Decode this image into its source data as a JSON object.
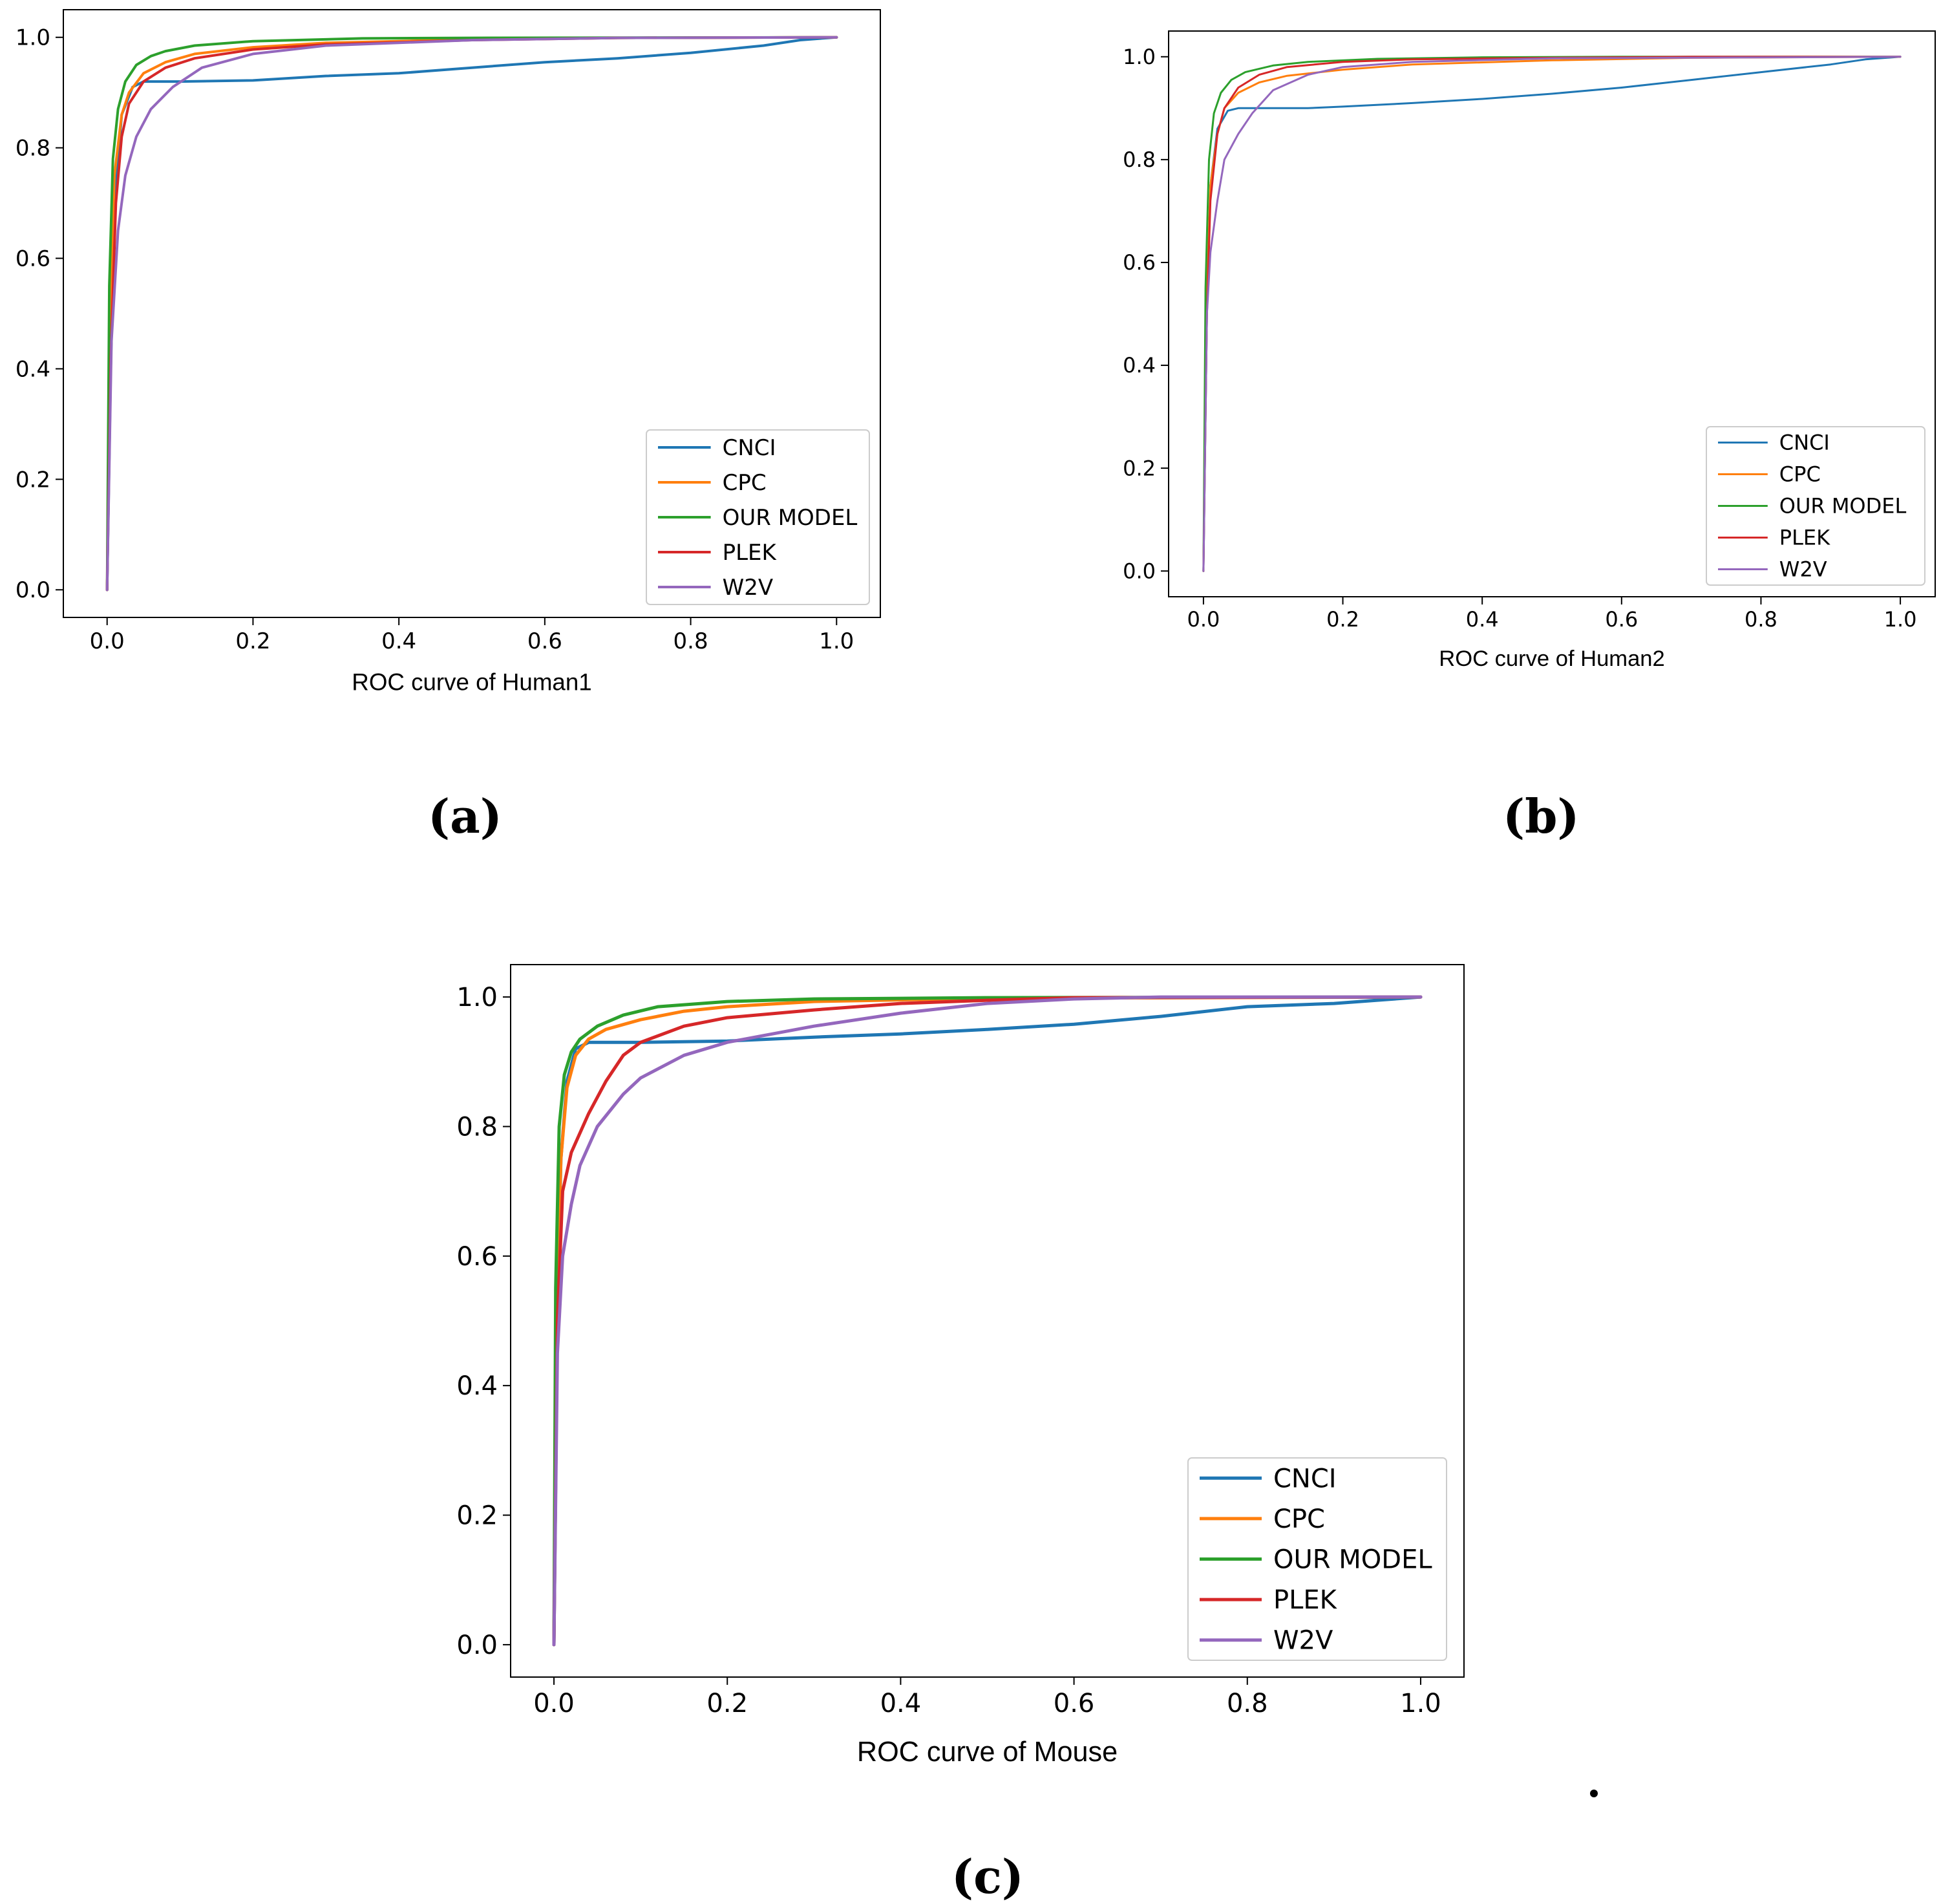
{
  "panel_labels": {
    "a": "(a)",
    "b": "(b)",
    "c": "(c)"
  },
  "colors": {
    "CNCI": "#1f77b4",
    "CPC": "#ff7f0e",
    "OUR MODEL": "#2ca02c",
    "PLEK": "#d62728",
    "W2V": "#9467bd"
  },
  "chart_data": [
    {
      "type": "line",
      "id": "human1",
      "title": "",
      "xlabel": "ROC curve of Human1",
      "ylabel": "",
      "xlim": [
        -0.06,
        1.06
      ],
      "ylim": [
        -0.05,
        1.05
      ],
      "xticks": [
        "0.0",
        "0.2",
        "0.4",
        "0.6",
        "0.8",
        "1.0"
      ],
      "yticks": [
        "0.0",
        "0.2",
        "0.4",
        "0.6",
        "0.8",
        "1.0"
      ],
      "grid": false,
      "legend_position": "lower-right",
      "series": [
        {
          "name": "CNCI",
          "x": [
            0,
            0.005,
            0.01,
            0.02,
            0.035,
            0.05,
            0.1,
            0.2,
            0.3,
            0.4,
            0.5,
            0.6,
            0.7,
            0.8,
            0.9,
            0.95,
            1.0
          ],
          "y": [
            0,
            0.4,
            0.7,
            0.86,
            0.91,
            0.92,
            0.92,
            0.922,
            0.93,
            0.935,
            0.945,
            0.955,
            0.962,
            0.972,
            0.985,
            0.995,
            1.0
          ]
        },
        {
          "name": "CPC",
          "x": [
            0,
            0.004,
            0.01,
            0.02,
            0.03,
            0.05,
            0.08,
            0.12,
            0.2,
            0.3,
            0.5,
            0.7,
            1.0
          ],
          "y": [
            0,
            0.5,
            0.75,
            0.86,
            0.9,
            0.935,
            0.955,
            0.97,
            0.982,
            0.99,
            0.996,
            0.999,
            1.0
          ]
        },
        {
          "name": "OUR MODEL",
          "x": [
            0,
            0.003,
            0.008,
            0.015,
            0.025,
            0.04,
            0.06,
            0.08,
            0.12,
            0.2,
            0.35,
            0.5,
            1.0
          ],
          "y": [
            0,
            0.55,
            0.78,
            0.87,
            0.92,
            0.95,
            0.966,
            0.975,
            0.985,
            0.993,
            0.998,
            0.999,
            1.0
          ]
        },
        {
          "name": "PLEK",
          "x": [
            0,
            0.005,
            0.012,
            0.02,
            0.03,
            0.05,
            0.08,
            0.12,
            0.2,
            0.3,
            0.5,
            0.7,
            1.0
          ],
          "y": [
            0,
            0.42,
            0.7,
            0.82,
            0.88,
            0.92,
            0.945,
            0.962,
            0.978,
            0.987,
            0.995,
            0.999,
            1.0
          ]
        },
        {
          "name": "W2V",
          "x": [
            0,
            0.006,
            0.015,
            0.025,
            0.04,
            0.06,
            0.09,
            0.13,
            0.2,
            0.3,
            0.5,
            0.7,
            1.0
          ],
          "y": [
            0,
            0.45,
            0.65,
            0.75,
            0.82,
            0.87,
            0.91,
            0.945,
            0.97,
            0.985,
            0.995,
            0.999,
            1.0
          ]
        }
      ]
    },
    {
      "type": "line",
      "id": "human2",
      "title": "",
      "xlabel": "ROC curve of Human2",
      "ylabel": "",
      "xlim": [
        -0.05,
        1.05
      ],
      "ylim": [
        -0.05,
        1.05
      ],
      "xticks": [
        "0.0",
        "0.2",
        "0.4",
        "0.6",
        "0.8",
        "1.0"
      ],
      "yticks": [
        "0.0",
        "0.2",
        "0.4",
        "0.6",
        "0.8",
        "1.0"
      ],
      "grid": false,
      "legend_position": "lower-right",
      "series": [
        {
          "name": "CNCI",
          "x": [
            0,
            0.005,
            0.01,
            0.02,
            0.035,
            0.05,
            0.1,
            0.15,
            0.2,
            0.3,
            0.4,
            0.5,
            0.6,
            0.7,
            0.8,
            0.9,
            0.95,
            1.0
          ],
          "y": [
            0,
            0.5,
            0.75,
            0.86,
            0.895,
            0.9,
            0.9,
            0.9,
            0.903,
            0.91,
            0.918,
            0.928,
            0.94,
            0.955,
            0.97,
            0.985,
            0.995,
            1.0
          ]
        },
        {
          "name": "CPC",
          "x": [
            0,
            0.004,
            0.01,
            0.02,
            0.03,
            0.05,
            0.08,
            0.12,
            0.2,
            0.3,
            0.5,
            0.7,
            1.0
          ],
          "y": [
            0,
            0.5,
            0.75,
            0.85,
            0.9,
            0.93,
            0.95,
            0.963,
            0.975,
            0.985,
            0.993,
            0.998,
            1.0
          ]
        },
        {
          "name": "OUR MODEL",
          "x": [
            0,
            0.003,
            0.008,
            0.015,
            0.025,
            0.04,
            0.06,
            0.1,
            0.15,
            0.25,
            0.4,
            0.6,
            1.0
          ],
          "y": [
            0,
            0.55,
            0.8,
            0.89,
            0.93,
            0.955,
            0.97,
            0.983,
            0.99,
            0.996,
            0.999,
            1.0,
            1.0
          ]
        },
        {
          "name": "PLEK",
          "x": [
            0,
            0.005,
            0.01,
            0.02,
            0.03,
            0.05,
            0.08,
            0.12,
            0.2,
            0.3,
            0.5,
            0.7,
            1.0
          ],
          "y": [
            0,
            0.5,
            0.72,
            0.85,
            0.9,
            0.94,
            0.965,
            0.98,
            0.99,
            0.995,
            0.998,
            1.0,
            1.0
          ]
        },
        {
          "name": "W2V",
          "x": [
            0,
            0.005,
            0.01,
            0.02,
            0.03,
            0.05,
            0.07,
            0.1,
            0.15,
            0.2,
            0.3,
            0.5,
            1.0
          ],
          "y": [
            0,
            0.5,
            0.62,
            0.72,
            0.8,
            0.85,
            0.89,
            0.935,
            0.965,
            0.98,
            0.99,
            0.997,
            1.0
          ]
        }
      ]
    },
    {
      "type": "line",
      "id": "mouse",
      "title": "",
      "xlabel": "ROC curve of Mouse",
      "ylabel": "",
      "xlim": [
        -0.05,
        1.05
      ],
      "ylim": [
        -0.05,
        1.05
      ],
      "xticks": [
        "0.0",
        "0.2",
        "0.4",
        "0.6",
        "0.8",
        "1.0"
      ],
      "yticks": [
        "0.0",
        "0.2",
        "0.4",
        "0.6",
        "0.8",
        "1.0"
      ],
      "grid": false,
      "legend_position": "lower-right",
      "series": [
        {
          "name": "CNCI",
          "x": [
            0,
            0.004,
            0.008,
            0.015,
            0.025,
            0.04,
            0.1,
            0.2,
            0.3,
            0.4,
            0.5,
            0.6,
            0.7,
            0.8,
            0.9,
            0.95,
            1.0
          ],
          "y": [
            0,
            0.5,
            0.75,
            0.87,
            0.92,
            0.93,
            0.93,
            0.932,
            0.938,
            0.943,
            0.95,
            0.958,
            0.97,
            0.985,
            0.99,
            0.995,
            1.0
          ]
        },
        {
          "name": "CPC",
          "x": [
            0,
            0.003,
            0.008,
            0.015,
            0.025,
            0.04,
            0.06,
            0.1,
            0.15,
            0.2,
            0.3,
            0.5,
            1.0
          ],
          "y": [
            0,
            0.5,
            0.75,
            0.86,
            0.91,
            0.935,
            0.95,
            0.965,
            0.978,
            0.985,
            0.993,
            0.998,
            1.0
          ]
        },
        {
          "name": "OUR MODEL",
          "x": [
            0,
            0.002,
            0.006,
            0.012,
            0.02,
            0.03,
            0.05,
            0.08,
            0.12,
            0.2,
            0.3,
            0.5,
            1.0
          ],
          "y": [
            0,
            0.55,
            0.8,
            0.88,
            0.915,
            0.935,
            0.955,
            0.972,
            0.985,
            0.993,
            0.997,
            0.999,
            1.0
          ]
        },
        {
          "name": "PLEK",
          "x": [
            0,
            0.004,
            0.01,
            0.02,
            0.04,
            0.06,
            0.08,
            0.1,
            0.15,
            0.2,
            0.3,
            0.4,
            0.5,
            0.6,
            1.0
          ],
          "y": [
            0,
            0.5,
            0.7,
            0.76,
            0.82,
            0.87,
            0.91,
            0.93,
            0.955,
            0.968,
            0.98,
            0.99,
            0.995,
            0.999,
            1.0
          ]
        },
        {
          "name": "W2V",
          "x": [
            0,
            0.004,
            0.01,
            0.02,
            0.03,
            0.05,
            0.08,
            0.1,
            0.15,
            0.2,
            0.3,
            0.4,
            0.5,
            0.6,
            0.7,
            1.0
          ],
          "y": [
            0,
            0.45,
            0.6,
            0.68,
            0.74,
            0.8,
            0.85,
            0.875,
            0.91,
            0.93,
            0.955,
            0.975,
            0.99,
            0.997,
            1.0,
            1.0
          ]
        }
      ]
    }
  ]
}
